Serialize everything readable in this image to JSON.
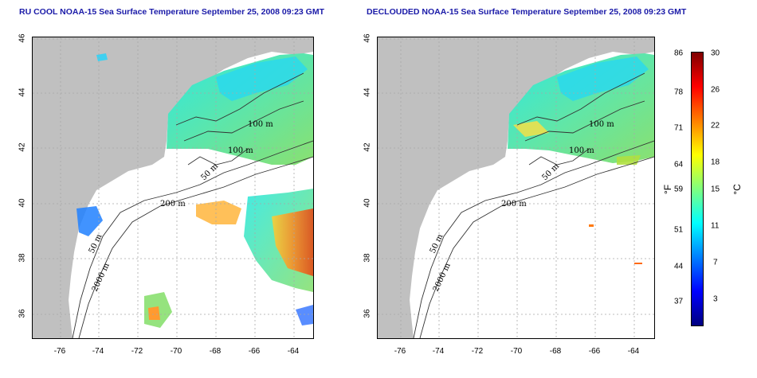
{
  "left_panel": {
    "title": "RU COOL NOAA-15 Sea Surface Temperature September 25, 2008 09:23 GMT",
    "contour_labels": [
      "100 m",
      "100 m",
      "50 m",
      "200 m",
      "50 m",
      "2000 m"
    ]
  },
  "right_panel": {
    "title": "DECLOUDED NOAA-15 Sea Surface Temperature September 25, 2008 09:23 GMT",
    "contour_labels": [
      "100 m",
      "100 m",
      "50 m",
      "200 m",
      "50 m",
      "2000 m"
    ]
  },
  "x_ticks": [
    "-76",
    "-74",
    "-72",
    "-70",
    "-68",
    "-66",
    "-64"
  ],
  "y_ticks": [
    "36",
    "38",
    "40",
    "42",
    "44",
    "46"
  ],
  "colorbar": {
    "f_ticks": [
      "86",
      "78",
      "71",
      "64",
      "59",
      "51",
      "44",
      "37"
    ],
    "c_ticks": [
      "30",
      "26",
      "22",
      "18",
      "15",
      "11",
      "7",
      "3"
    ],
    "f_unit": "°F",
    "c_unit": "°C",
    "colors": [
      "#00007f",
      "#0000ff",
      "#007fff",
      "#00ffff",
      "#7fff7f",
      "#ffff00",
      "#ff7f00",
      "#ff0000",
      "#7f0000"
    ]
  },
  "colors": {
    "land": "#c0c0c0",
    "grid": "#a8a8a8",
    "title": "#1a1aa8"
  }
}
